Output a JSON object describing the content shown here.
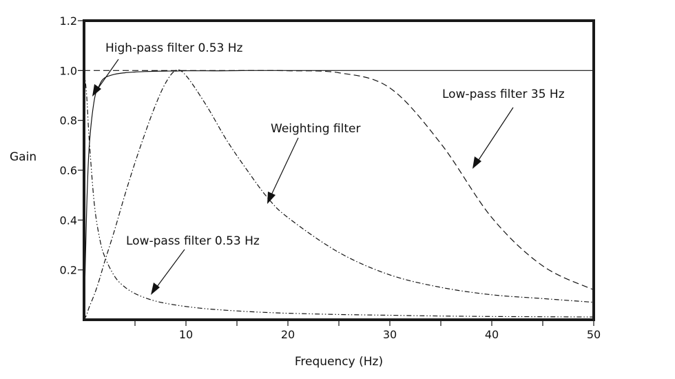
{
  "chart_data": {
    "type": "line",
    "xlabel": "Frequency (Hz)",
    "ylabel": "Gain",
    "xlim": [
      0,
      50
    ],
    "ylim": [
      0,
      1.2
    ],
    "xticks": [
      5,
      10,
      15,
      20,
      25,
      30,
      35,
      40,
      45,
      50
    ],
    "xtick_labels": [
      "10",
      "20",
      "30",
      "40",
      "50"
    ],
    "xtick_label_values": [
      10,
      20,
      30,
      40,
      50
    ],
    "yticks": [
      0.2,
      0.4,
      0.6,
      0.8,
      1.0,
      1.2
    ],
    "ytick_labels": [
      "0.2",
      "0.4",
      "0.6",
      "0.8",
      "1.0",
      "1.2"
    ],
    "grid": false,
    "legend": "none",
    "x": [
      0,
      0.25,
      0.5,
      1,
      1.5,
      2,
      3,
      4,
      5,
      6,
      7,
      8,
      9,
      10,
      12,
      14,
      16,
      18,
      20,
      25,
      30,
      35,
      40,
      45,
      50
    ],
    "series": [
      {
        "name": "High-pass filter 0.53 Hz",
        "style": "solid",
        "values": [
          0,
          0.43,
          0.69,
          0.88,
          0.94,
          0.97,
          0.985,
          0.991,
          0.994,
          0.996,
          0.997,
          0.998,
          0.998,
          0.999,
          0.999,
          0.999,
          1.0,
          1.0,
          1.0,
          1.0,
          1.0,
          1.0,
          1.0,
          1.0,
          1.0
        ]
      },
      {
        "name": "Low-pass filter 35 Hz",
        "style": "dashed",
        "values": [
          1.0,
          1.0,
          1.0,
          1.0,
          1.0,
          1.0,
          1.0,
          1.0,
          1.0,
          1.0,
          1.0,
          1.0,
          1.0,
          1.0,
          1.0,
          1.0,
          1.0,
          1.0,
          0.999,
          0.991,
          0.93,
          0.707,
          0.41,
          0.216,
          0.12
        ]
      },
      {
        "name": "Weighting filter",
        "style": "dash-dot",
        "values": [
          0,
          0.02,
          0.05,
          0.1,
          0.16,
          0.23,
          0.36,
          0.5,
          0.63,
          0.75,
          0.86,
          0.95,
          1.0,
          0.98,
          0.86,
          0.72,
          0.6,
          0.49,
          0.41,
          0.27,
          0.18,
          0.13,
          0.1,
          0.085,
          0.07
        ]
      },
      {
        "name": "Low-pass filter 0.53 Hz",
        "style": "dash-dot-dot",
        "values": [
          1.0,
          0.904,
          0.727,
          0.468,
          0.333,
          0.256,
          0.174,
          0.131,
          0.105,
          0.088,
          0.075,
          0.066,
          0.059,
          0.053,
          0.044,
          0.038,
          0.033,
          0.029,
          0.026,
          0.021,
          0.018,
          0.015,
          0.013,
          0.012,
          0.011
        ]
      }
    ],
    "annotations": [
      {
        "text": "High-pass filter 0.53 Hz",
        "points_to": {
          "x": 0.8,
          "y": 0.9
        }
      },
      {
        "text": "Weighting filter",
        "points_to": {
          "x": 18.2,
          "y": 0.46
        }
      },
      {
        "text": "Low-pass filter 35 Hz",
        "points_to": {
          "x": 38,
          "y": 0.6
        }
      },
      {
        "text": "Low-pass filter 0.53 Hz",
        "points_to": {
          "x": 6.7,
          "y": 0.1
        }
      }
    ],
    "colors": {
      "line": "#111111",
      "frame": "#1a1a1a"
    }
  }
}
